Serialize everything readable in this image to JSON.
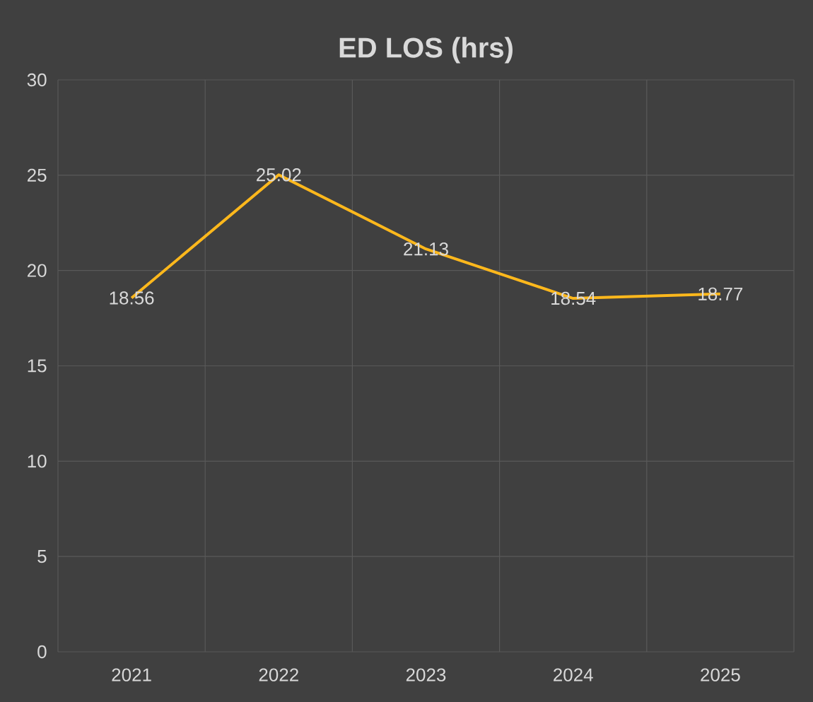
{
  "chart_data": {
    "type": "line",
    "title": "ED LOS (hrs)",
    "categories": [
      "2021",
      "2022",
      "2023",
      "2024",
      "2025"
    ],
    "series": [
      {
        "color": "#ffb81c",
        "values": [
          18.56,
          25.02,
          21.13,
          18.54,
          18.77
        ]
      }
    ],
    "ylim": [
      0,
      30
    ],
    "yticks": [
      0,
      5,
      10,
      15,
      20,
      25,
      30
    ],
    "grid": true,
    "data_labels": true,
    "marker": "none",
    "line_style": "solid"
  }
}
